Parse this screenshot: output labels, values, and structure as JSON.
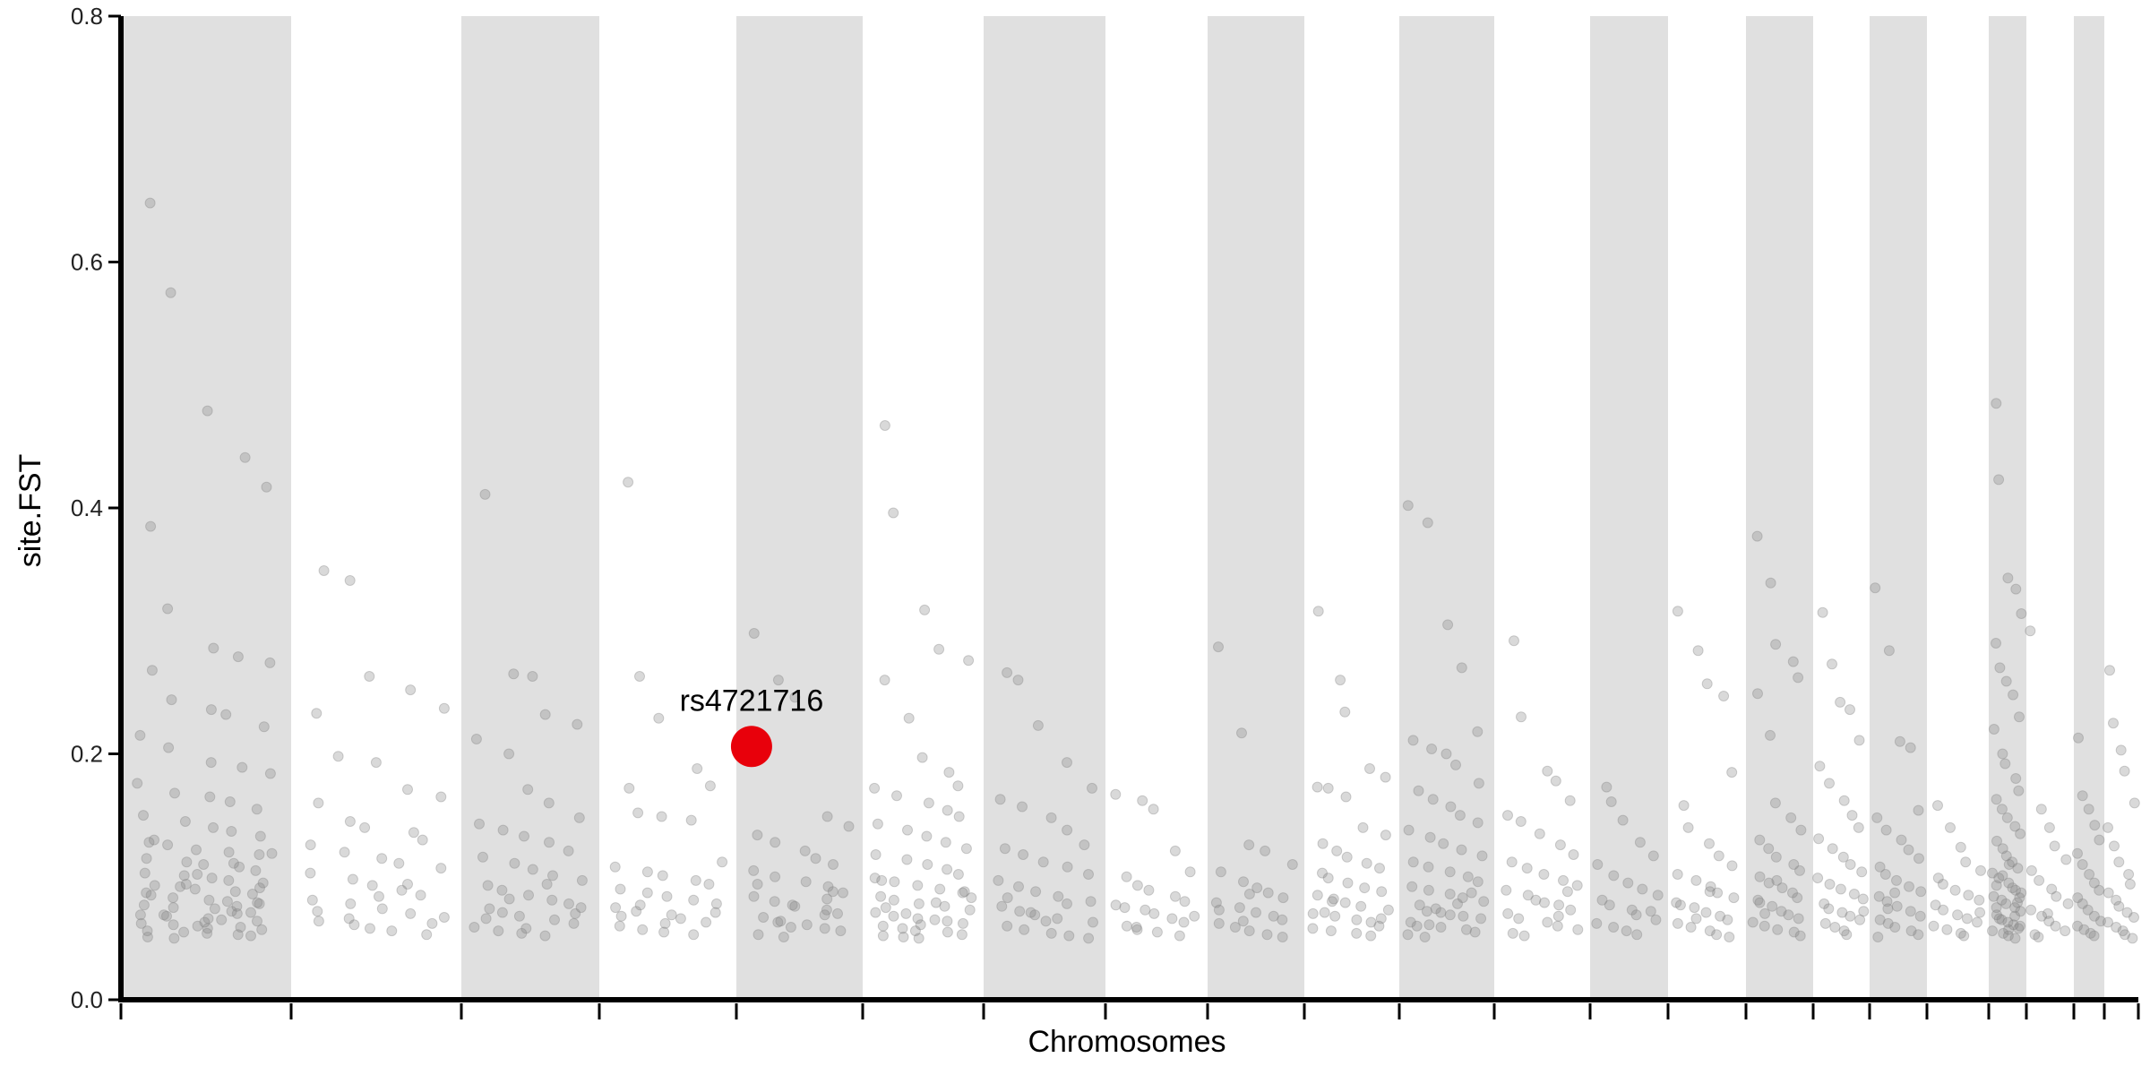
{
  "chart_data": {
    "type": "scatter",
    "title": "",
    "xlabel": "Chromosomes",
    "ylabel": "site.FST",
    "ylim": [
      0,
      0.8
    ],
    "yticks": [
      "0.0",
      "0.2",
      "0.4",
      "0.6",
      "0.8"
    ],
    "grid": false,
    "legend": "none",
    "colors": {
      "band": "#e0e0e0",
      "point": "#808080",
      "highlight": "#e8000b",
      "axis": "#000000"
    },
    "point_opacity": 0.3,
    "chromosomes": [
      {
        "span": [
          0,
          190
        ],
        "shaded": true,
        "values": [
          0.648,
          0.575,
          0.479,
          0.441,
          0.417,
          0.385,
          0.318,
          0.286,
          0.279,
          0.274,
          0.268,
          0.244,
          0.236,
          0.232,
          0.222,
          0.215,
          0.205,
          0.193,
          0.189,
          0.184,
          0.176,
          0.168,
          0.165,
          0.161,
          0.155,
          0.15,
          0.145,
          0.14,
          0.137,
          0.133,
          0.13,
          0.126,
          0.122,
          0.12,
          0.118,
          0.115,
          0.112,
          0.11,
          0.108,
          0.105,
          0.103,
          0.101,
          0.099,
          0.097,
          0.095,
          0.093,
          0.092,
          0.09,
          0.088,
          0.086,
          0.085,
          0.083,
          0.081,
          0.08,
          0.078,
          0.077,
          0.075,
          0.074,
          0.072,
          0.071,
          0.069,
          0.068,
          0.066,
          0.065,
          0.064,
          0.062,
          0.061,
          0.06,
          0.059,
          0.057,
          0.056,
          0.055,
          0.054,
          0.053,
          0.052,
          0.051,
          0.05,
          0.063,
          0.07,
          0.079,
          0.087,
          0.094,
          0.102,
          0.111,
          0.119,
          0.128,
          0.069,
          0.058,
          0.076,
          0.091
        ]
      },
      {
        "span": [
          190,
          380
        ],
        "shaded": false,
        "values": [
          0.349,
          0.341,
          0.263,
          0.252,
          0.237,
          0.233,
          0.198,
          0.193,
          0.171,
          0.165,
          0.16,
          0.145,
          0.14,
          0.136,
          0.13,
          0.126,
          0.12,
          0.115,
          0.111,
          0.107,
          0.103,
          0.098,
          0.093,
          0.089,
          0.085,
          0.081,
          0.078,
          0.074,
          0.07,
          0.067,
          0.064,
          0.061,
          0.058,
          0.056,
          0.053,
          0.072,
          0.066,
          0.084,
          0.094,
          0.062
        ]
      },
      {
        "span": [
          380,
          534
        ],
        "shaded": true,
        "values": [
          0.411,
          0.265,
          0.263,
          0.232,
          0.224,
          0.212,
          0.2,
          0.171,
          0.16,
          0.148,
          0.143,
          0.138,
          0.133,
          0.128,
          0.121,
          0.116,
          0.111,
          0.106,
          0.101,
          0.097,
          0.093,
          0.089,
          0.085,
          0.081,
          0.078,
          0.074,
          0.071,
          0.068,
          0.065,
          0.062,
          0.059,
          0.056,
          0.054,
          0.052,
          0.075,
          0.066,
          0.082,
          0.058,
          0.094,
          0.07
        ]
      },
      {
        "span": [
          534,
          687
        ],
        "shaded": false,
        "values": [
          0.421,
          0.263,
          0.229,
          0.188,
          0.174,
          0.172,
          0.152,
          0.149,
          0.146,
          0.112,
          0.108,
          0.104,
          0.101,
          0.097,
          0.094,
          0.09,
          0.087,
          0.084,
          0.081,
          0.078,
          0.075,
          0.072,
          0.069,
          0.066,
          0.063,
          0.06,
          0.057,
          0.055,
          0.053,
          0.071,
          0.068,
          0.077,
          0.062
        ]
      },
      {
        "span": [
          687,
          828
        ],
        "shaded": true,
        "values": [
          0.298,
          0.26,
          0.246,
          0.149,
          0.141,
          0.134,
          0.128,
          0.121,
          0.115,
          0.11,
          0.105,
          0.1,
          0.096,
          0.092,
          0.088,
          0.084,
          0.08,
          0.077,
          0.073,
          0.07,
          0.067,
          0.064,
          0.061,
          0.058,
          0.056,
          0.053,
          0.051,
          0.076,
          0.069,
          0.087,
          0.094,
          0.063,
          0.059,
          0.082
        ]
      },
      {
        "span": [
          828,
          963
        ],
        "shaded": false,
        "values": [
          0.467,
          0.396,
          0.317,
          0.285,
          0.276,
          0.26,
          0.229,
          0.197,
          0.185,
          0.174,
          0.172,
          0.166,
          0.16,
          0.154,
          0.149,
          0.143,
          0.138,
          0.133,
          0.128,
          0.123,
          0.118,
          0.114,
          0.11,
          0.106,
          0.102,
          0.099,
          0.096,
          0.093,
          0.09,
          0.087,
          0.084,
          0.081,
          0.078,
          0.076,
          0.073,
          0.071,
          0.068,
          0.066,
          0.064,
          0.062,
          0.06,
          0.058,
          0.056,
          0.055,
          0.053,
          0.052,
          0.051,
          0.05,
          0.079,
          0.088,
          0.097,
          0.07,
          0.061,
          0.065,
          0.083,
          0.075
        ]
      },
      {
        "span": [
          963,
          1099
        ],
        "shaded": true,
        "values": [
          0.266,
          0.26,
          0.223,
          0.193,
          0.172,
          0.163,
          0.157,
          0.148,
          0.138,
          0.126,
          0.123,
          0.118,
          0.112,
          0.108,
          0.102,
          0.097,
          0.092,
          0.088,
          0.084,
          0.08,
          0.076,
          0.072,
          0.069,
          0.066,
          0.063,
          0.06,
          0.057,
          0.054,
          0.052,
          0.05,
          0.083,
          0.071,
          0.064,
          0.078
        ]
      },
      {
        "span": [
          1099,
          1213
        ],
        "shaded": false,
        "values": [
          0.167,
          0.162,
          0.155,
          0.121,
          0.104,
          0.1,
          0.093,
          0.089,
          0.084,
          0.08,
          0.077,
          0.073,
          0.07,
          0.066,
          0.063,
          0.06,
          0.057,
          0.055,
          0.052,
          0.068,
          0.075,
          0.059
        ]
      },
      {
        "span": [
          1213,
          1321
        ],
        "shaded": true,
        "values": [
          0.287,
          0.217,
          0.126,
          0.121,
          0.11,
          0.104,
          0.096,
          0.091,
          0.087,
          0.083,
          0.079,
          0.075,
          0.071,
          0.068,
          0.065,
          0.062,
          0.059,
          0.056,
          0.053,
          0.051,
          0.073,
          0.064,
          0.086
        ]
      },
      {
        "span": [
          1321,
          1427
        ],
        "shaded": false,
        "values": [
          0.316,
          0.26,
          0.234,
          0.188,
          0.181,
          0.173,
          0.172,
          0.165,
          0.14,
          0.134,
          0.127,
          0.121,
          0.116,
          0.111,
          0.107,
          0.103,
          0.099,
          0.095,
          0.091,
          0.088,
          0.085,
          0.082,
          0.079,
          0.076,
          0.073,
          0.07,
          0.068,
          0.065,
          0.063,
          0.06,
          0.058,
          0.056,
          0.054,
          0.052,
          0.066,
          0.071,
          0.08
        ]
      },
      {
        "span": [
          1427,
          1533
        ],
        "shaded": true,
        "values": [
          0.402,
          0.388,
          0.305,
          0.27,
          0.218,
          0.211,
          0.204,
          0.2,
          0.191,
          0.176,
          0.17,
          0.163,
          0.157,
          0.15,
          0.144,
          0.138,
          0.132,
          0.127,
          0.122,
          0.117,
          0.112,
          0.108,
          0.104,
          0.1,
          0.096,
          0.092,
          0.089,
          0.086,
          0.083,
          0.08,
          0.077,
          0.074,
          0.071,
          0.068,
          0.066,
          0.063,
          0.061,
          0.059,
          0.057,
          0.055,
          0.053,
          0.051,
          0.069,
          0.078,
          0.087,
          0.06,
          0.072
        ]
      },
      {
        "span": [
          1533,
          1640
        ],
        "shaded": false,
        "values": [
          0.292,
          0.23,
          0.186,
          0.178,
          0.162,
          0.15,
          0.145,
          0.135,
          0.126,
          0.118,
          0.112,
          0.107,
          0.102,
          0.097,
          0.093,
          0.089,
          0.085,
          0.081,
          0.077,
          0.073,
          0.07,
          0.066,
          0.063,
          0.06,
          0.057,
          0.054,
          0.052,
          0.079,
          0.068,
          0.088
        ]
      },
      {
        "span": [
          1640,
          1727
        ],
        "shaded": true,
        "values": [
          0.173,
          0.161,
          0.146,
          0.128,
          0.117,
          0.11,
          0.101,
          0.095,
          0.09,
          0.085,
          0.081,
          0.077,
          0.073,
          0.069,
          0.065,
          0.062,
          0.059,
          0.056,
          0.053,
          0.072
        ]
      },
      {
        "span": [
          1727,
          1814
        ],
        "shaded": false,
        "values": [
          0.316,
          0.284,
          0.257,
          0.247,
          0.185,
          0.158,
          0.14,
          0.127,
          0.117,
          0.109,
          0.102,
          0.097,
          0.092,
          0.087,
          0.083,
          0.079,
          0.075,
          0.071,
          0.068,
          0.065,
          0.062,
          0.059,
          0.056,
          0.053,
          0.051,
          0.077,
          0.066,
          0.088
        ]
      },
      {
        "span": [
          1814,
          1889
        ],
        "shaded": true,
        "values": [
          0.377,
          0.339,
          0.289,
          0.275,
          0.262,
          0.249,
          0.215,
          0.16,
          0.148,
          0.138,
          0.13,
          0.123,
          0.116,
          0.11,
          0.105,
          0.1,
          0.095,
          0.091,
          0.087,
          0.083,
          0.079,
          0.076,
          0.072,
          0.069,
          0.066,
          0.063,
          0.06,
          0.057,
          0.055,
          0.052,
          0.081,
          0.07,
          0.097
        ]
      },
      {
        "span": [
          1889,
          1952
        ],
        "shaded": false,
        "values": [
          0.315,
          0.273,
          0.242,
          0.236,
          0.211,
          0.19,
          0.176,
          0.162,
          0.15,
          0.14,
          0.131,
          0.123,
          0.116,
          0.11,
          0.104,
          0.099,
          0.094,
          0.09,
          0.086,
          0.082,
          0.078,
          0.074,
          0.071,
          0.068,
          0.065,
          0.062,
          0.059,
          0.056,
          0.053,
          0.072
        ]
      },
      {
        "span": [
          1952,
          2016
        ],
        "shaded": true,
        "values": [
          0.335,
          0.284,
          0.21,
          0.205,
          0.154,
          0.148,
          0.138,
          0.13,
          0.122,
          0.115,
          0.108,
          0.102,
          0.097,
          0.092,
          0.088,
          0.084,
          0.08,
          0.076,
          0.072,
          0.068,
          0.065,
          0.062,
          0.059,
          0.056,
          0.053,
          0.051,
          0.074,
          0.087
        ]
      },
      {
        "span": [
          2016,
          2085
        ],
        "shaded": false,
        "values": [
          0.158,
          0.14,
          0.124,
          0.112,
          0.105,
          0.099,
          0.094,
          0.089,
          0.085,
          0.081,
          0.077,
          0.073,
          0.069,
          0.066,
          0.063,
          0.06,
          0.057,
          0.054,
          0.052,
          0.071
        ]
      },
      {
        "span": [
          2085,
          2127
        ],
        "shaded": true,
        "values": [
          0.485,
          0.423,
          0.343,
          0.334,
          0.314,
          0.29,
          0.27,
          0.259,
          0.248,
          0.23,
          0.22,
          0.2,
          0.192,
          0.18,
          0.17,
          0.163,
          0.155,
          0.148,
          0.141,
          0.135,
          0.129,
          0.123,
          0.117,
          0.112,
          0.107,
          0.103,
          0.099,
          0.095,
          0.091,
          0.087,
          0.084,
          0.081,
          0.078,
          0.075,
          0.072,
          0.069,
          0.066,
          0.063,
          0.061,
          0.058,
          0.056,
          0.054,
          0.052,
          0.05,
          0.083,
          0.093,
          0.101,
          0.11,
          0.068,
          0.06,
          0.075,
          0.065,
          0.057,
          0.089,
          0.079
        ]
      },
      {
        "span": [
          2127,
          2180
        ],
        "shaded": false,
        "values": [
          0.3,
          0.155,
          0.14,
          0.125,
          0.114,
          0.105,
          0.097,
          0.09,
          0.084,
          0.078,
          0.073,
          0.068,
          0.064,
          0.06,
          0.056,
          0.053,
          0.051,
          0.07
        ]
      },
      {
        "span": [
          2180,
          2214
        ],
        "shaded": true,
        "values": [
          0.213,
          0.166,
          0.155,
          0.142,
          0.13,
          0.119,
          0.11,
          0.102,
          0.095,
          0.089,
          0.083,
          0.078,
          0.073,
          0.068,
          0.064,
          0.06,
          0.057,
          0.054,
          0.052
        ]
      },
      {
        "span": [
          2214,
          2252
        ],
        "shaded": false,
        "values": [
          0.268,
          0.225,
          0.203,
          0.186,
          0.16,
          0.14,
          0.125,
          0.112,
          0.102,
          0.094,
          0.087,
          0.081,
          0.076,
          0.071,
          0.067,
          0.063,
          0.059,
          0.056,
          0.053,
          0.05
        ]
      }
    ],
    "highlight": {
      "label": "rs4721716",
      "chromosome": 4,
      "position": 0.12,
      "value": 0.206
    }
  }
}
